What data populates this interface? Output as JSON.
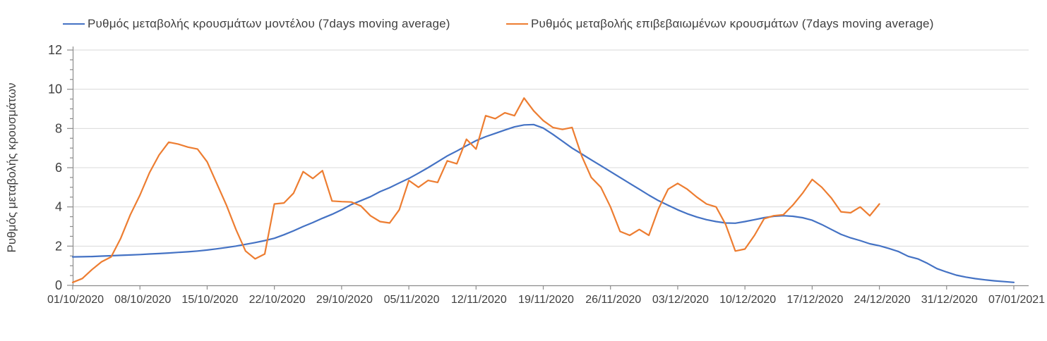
{
  "legend": {
    "items": [
      {
        "label": "Ρυθμός μεταβολής κρουσμάτων μοντέλου (7days moving average)",
        "color": "#4472C4"
      },
      {
        "label": "Ρυθμός μεταβολής επιβεβαιωμένων κρουσμάτων (7days moving average)",
        "color": "#ED7D31"
      }
    ]
  },
  "chart_data": {
    "type": "line",
    "title": "",
    "xlabel": "",
    "ylabel": "Ρυθμός μεταβολής κρουσμάτων",
    "ylim": [
      0,
      12
    ],
    "y_major_ticks": [
      0,
      2,
      4,
      6,
      8,
      10,
      12
    ],
    "y_minor_step": 0.5,
    "grid": "horizontal-major",
    "legend_position": "top",
    "x_total_days": 98,
    "x_ticks": [
      {
        "label": "01/10/2020",
        "day": 0
      },
      {
        "label": "08/10/2020",
        "day": 7
      },
      {
        "label": "15/10/2020",
        "day": 14
      },
      {
        "label": "22/10/2020",
        "day": 21
      },
      {
        "label": "29/10/2020",
        "day": 28
      },
      {
        "label": "05/11/2020",
        "day": 35
      },
      {
        "label": "12/11/2020",
        "day": 42
      },
      {
        "label": "19/11/2020",
        "day": 49
      },
      {
        "label": "26/11/2020",
        "day": 56
      },
      {
        "label": "03/12/2020",
        "day": 63
      },
      {
        "label": "10/12/2020",
        "day": 70
      },
      {
        "label": "17/12/2020",
        "day": 77
      },
      {
        "label": "24/12/2020",
        "day": 84
      },
      {
        "label": "31/12/2020",
        "day": 91
      },
      {
        "label": "07/01/2021",
        "day": 98
      }
    ],
    "series": [
      {
        "name": "Ρυθμός μεταβολής κρουσμάτων μοντέλου (7days moving average)",
        "color": "#4472C4",
        "start_day": 0,
        "step_days": 1,
        "values": [
          1.45,
          1.46,
          1.47,
          1.49,
          1.51,
          1.53,
          1.55,
          1.57,
          1.6,
          1.62,
          1.65,
          1.68,
          1.71,
          1.75,
          1.8,
          1.86,
          1.93,
          2.0,
          2.09,
          2.18,
          2.28,
          2.4,
          2.58,
          2.78,
          3.0,
          3.2,
          3.42,
          3.62,
          3.85,
          4.12,
          4.32,
          4.52,
          4.78,
          4.98,
          5.22,
          5.45,
          5.72,
          6.0,
          6.3,
          6.6,
          6.85,
          7.12,
          7.38,
          7.58,
          7.75,
          7.92,
          8.08,
          8.18,
          8.2,
          8.02,
          7.7,
          7.35,
          7.0,
          6.7,
          6.4,
          6.1,
          5.8,
          5.5,
          5.2,
          4.9,
          4.6,
          4.32,
          4.08,
          3.85,
          3.65,
          3.48,
          3.35,
          3.25,
          3.18,
          3.17,
          3.25,
          3.35,
          3.45,
          3.52,
          3.55,
          3.52,
          3.45,
          3.32,
          3.1,
          2.85,
          2.6,
          2.42,
          2.28,
          2.12,
          2.02,
          1.88,
          1.72,
          1.48,
          1.35,
          1.12,
          0.85,
          0.68,
          0.52,
          0.42,
          0.34,
          0.28,
          0.23,
          0.19,
          0.15
        ]
      },
      {
        "name": "Ρυθμός μεταβολής επιβεβαιωμένων κρουσμάτων (7days moving average)",
        "color": "#ED7D31",
        "start_day": 0,
        "step_days": 1,
        "values": [
          0.15,
          0.35,
          0.8,
          1.2,
          1.45,
          2.4,
          3.6,
          4.6,
          5.75,
          6.65,
          7.3,
          7.2,
          7.05,
          6.95,
          6.3,
          5.2,
          4.1,
          2.85,
          1.75,
          1.35,
          1.6,
          4.15,
          4.2,
          4.7,
          5.8,
          5.45,
          5.85,
          4.3,
          4.27,
          4.25,
          4.05,
          3.55,
          3.25,
          3.18,
          3.85,
          5.35,
          5.0,
          5.35,
          5.25,
          6.35,
          6.2,
          7.45,
          6.95,
          8.65,
          8.5,
          8.8,
          8.65,
          9.55,
          8.9,
          8.4,
          8.05,
          7.95,
          8.05,
          6.6,
          5.5,
          5.0,
          4.0,
          2.75,
          2.55,
          2.85,
          2.55,
          3.9,
          4.9,
          5.2,
          4.9,
          4.5,
          4.15,
          4.0,
          3.1,
          1.75,
          1.85,
          2.55,
          3.4,
          3.55,
          3.6,
          4.1,
          4.7,
          5.4,
          5.0,
          4.45,
          3.75,
          3.7,
          4.0,
          3.55,
          4.15
        ]
      }
    ]
  }
}
